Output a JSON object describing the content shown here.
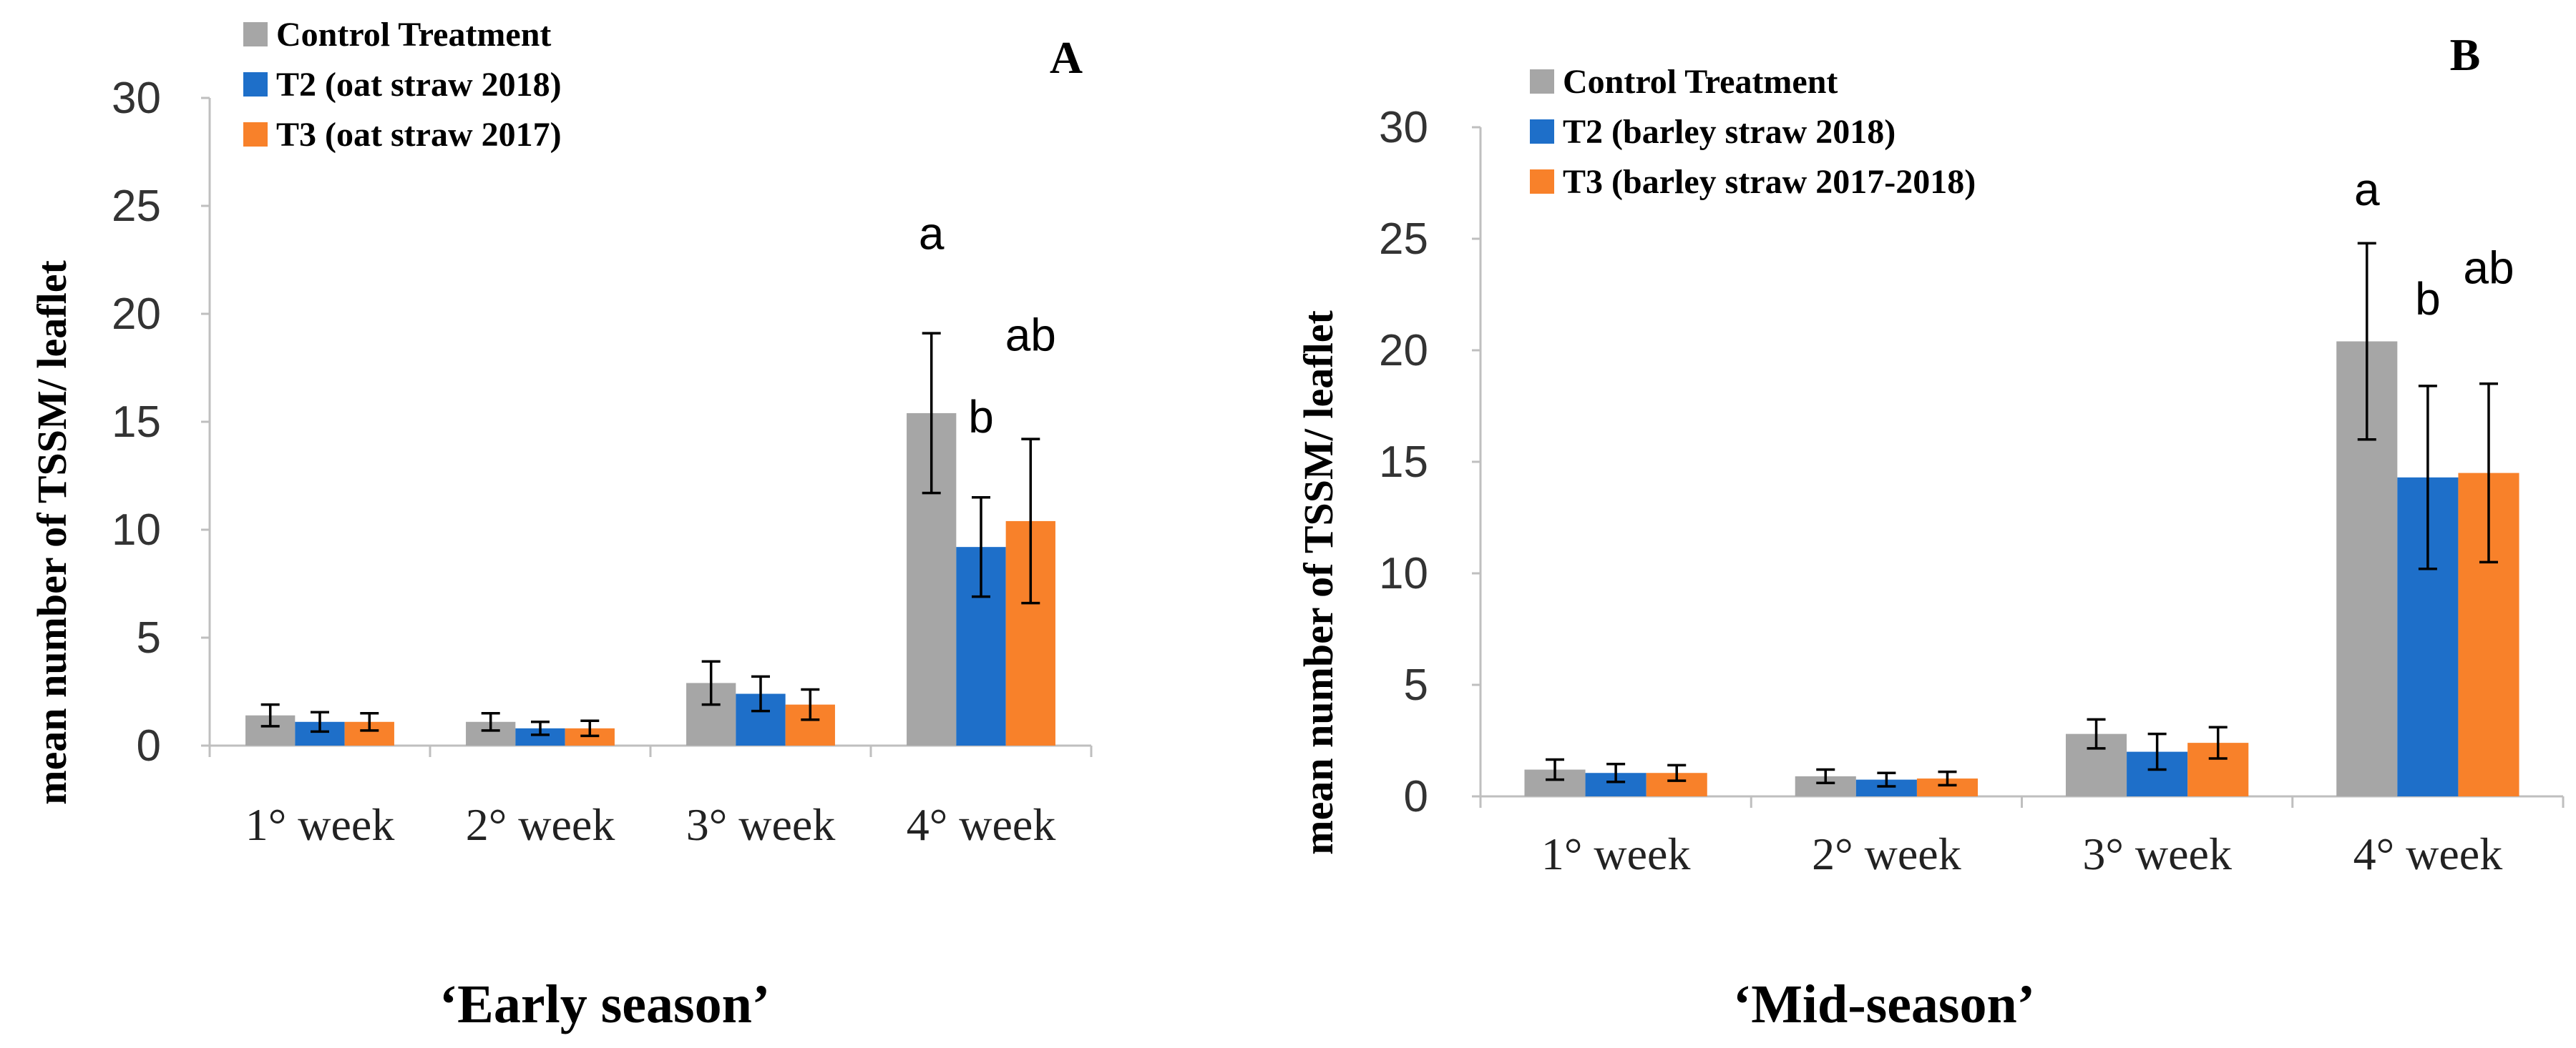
{
  "figure": {
    "colors": {
      "control": "#A6A6A6",
      "t2": "#1E6FC9",
      "t3": "#F8812A",
      "axis": "#BFBFBF",
      "errorbar": "#000000"
    }
  },
  "chart_data": [
    {
      "type": "bar",
      "panel_letter": "A",
      "season_label": "‘Early season’",
      "ylabel": "mean number of TSSM/ leaflet",
      "xlabel": "",
      "ylim": [
        0,
        30
      ],
      "yticks": [
        "0",
        "5",
        "10",
        "15",
        "20",
        "25",
        "30"
      ],
      "categories": [
        "1° week",
        "2° week",
        "3° week",
        "4° week"
      ],
      "series": [
        {
          "name": "Control Treatment",
          "key": "control",
          "values": [
            1.4,
            1.1,
            2.9,
            15.4
          ],
          "errors": [
            0.5,
            0.4,
            1.0,
            3.7
          ]
        },
        {
          "name": "T2 (oat straw 2018)",
          "key": "t2",
          "values": [
            1.1,
            0.8,
            2.4,
            9.2
          ],
          "errors": [
            0.45,
            0.3,
            0.8,
            2.3
          ]
        },
        {
          "name": "T3 (oat straw 2017)",
          "key": "t3",
          "values": [
            1.1,
            0.8,
            1.9,
            10.4
          ],
          "errors": [
            0.4,
            0.35,
            0.7,
            3.8
          ]
        }
      ],
      "annotations": [
        {
          "category": "4° week",
          "series": "control",
          "text": "a",
          "value": 23.0
        },
        {
          "category": "4° week",
          "series": "t2",
          "text": "b",
          "value": 14.5
        },
        {
          "category": "4° week",
          "series": "t3",
          "text": "ab",
          "value": 18.3
        }
      ],
      "legend_position": "top-left"
    },
    {
      "type": "bar",
      "panel_letter": "B",
      "season_label": "‘Mid-season’",
      "ylabel": "mean number of TSSM/ leaflet",
      "xlabel": "",
      "ylim": [
        0,
        30
      ],
      "yticks": [
        "0",
        "5",
        "10",
        "15",
        "20",
        "25",
        "30"
      ],
      "categories": [
        "1° week",
        "2° week",
        "3° week",
        "4° week"
      ],
      "series": [
        {
          "name": "Control Treatment",
          "key": "control",
          "values": [
            1.2,
            0.9,
            2.8,
            20.4
          ],
          "errors": [
            0.45,
            0.3,
            0.65,
            4.4
          ]
        },
        {
          "name": "T2 (barley straw 2018)",
          "key": "t2",
          "values": [
            1.05,
            0.75,
            2.0,
            14.3
          ],
          "errors": [
            0.4,
            0.3,
            0.8,
            4.1
          ]
        },
        {
          "name": "T3 (barley straw 2017-2018)",
          "key": "t3",
          "values": [
            1.05,
            0.8,
            2.4,
            14.5
          ],
          "errors": [
            0.35,
            0.3,
            0.7,
            4.0
          ]
        }
      ],
      "annotations": [
        {
          "category": "4° week",
          "series": "control",
          "text": "a",
          "value": 26.5
        },
        {
          "category": "4° week",
          "series": "t2",
          "text": "b",
          "value": 21.6
        },
        {
          "category": "4° week",
          "series": "t3",
          "text": "ab",
          "value": 23.0
        }
      ],
      "legend_position": "top-left"
    }
  ]
}
